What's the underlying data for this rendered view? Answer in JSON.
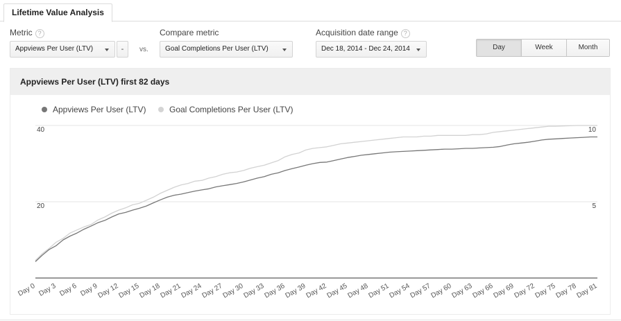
{
  "tabs": [
    {
      "label": "Lifetime Value Analysis"
    }
  ],
  "controls": {
    "metric_label": "Metric",
    "metric_value": "Appviews Per User (LTV)",
    "minus_label": "-",
    "vs_label": "vs.",
    "compare_label": "Compare metric",
    "compare_value": "Goal Completions Per User (LTV)",
    "date_label": "Acquisition date range",
    "date_value": "Dec 18, 2014 - Dec 24, 2014",
    "help_glyph": "?"
  },
  "granularity": {
    "options": [
      "Day",
      "Week",
      "Month"
    ],
    "selected": "Day"
  },
  "chart_title": "Appviews Per User (LTV) first 82 days",
  "colors": {
    "series_primary": "#777777",
    "series_compare": "#d2d2d2",
    "gridline": "#e6e6e6"
  },
  "chart_data": {
    "type": "line",
    "title": "Appviews Per User (LTV) first 82 days",
    "x_tick_labels": [
      "Day 0",
      "Day 3",
      "Day 6",
      "Day 9",
      "Day 12",
      "Day 15",
      "Day 18",
      "Day 21",
      "Day 24",
      "Day 27",
      "Day 30",
      "Day 33",
      "Day 36",
      "Day 39",
      "Day 42",
      "Day 45",
      "Day 48",
      "Day 51",
      "Day 54",
      "Day 57",
      "Day 60",
      "Day 63",
      "Day 66",
      "Day 69",
      "Day 72",
      "Day 75",
      "Day 78",
      "Day 81"
    ],
    "x_range": [
      0,
      81
    ],
    "y_left": {
      "ticks": [
        "40",
        "20"
      ],
      "range": [
        0,
        40
      ]
    },
    "y_right": {
      "ticks": [
        "10",
        "5"
      ],
      "range": [
        0,
        10
      ]
    },
    "grid": true,
    "legend_position": "top-left",
    "series": [
      {
        "name": "Appviews Per User (LTV)",
        "axis": "left",
        "x": [
          0,
          1,
          2,
          3,
          4,
          5,
          6,
          7,
          8,
          9,
          10,
          11,
          12,
          13,
          14,
          15,
          16,
          17,
          18,
          19,
          20,
          21,
          22,
          23,
          24,
          25,
          26,
          27,
          28,
          29,
          30,
          31,
          32,
          33,
          34,
          35,
          36,
          37,
          38,
          39,
          40,
          41,
          42,
          43,
          44,
          45,
          46,
          47,
          48,
          49,
          50,
          51,
          52,
          53,
          54,
          55,
          56,
          57,
          58,
          59,
          60,
          61,
          62,
          63,
          64,
          65,
          66,
          67,
          68,
          69,
          70,
          71,
          72,
          73,
          74,
          75,
          76,
          77,
          78,
          79,
          80,
          81
        ],
        "values": [
          4.3,
          6.0,
          7.5,
          8.5,
          10.0,
          11.0,
          11.8,
          12.8,
          13.6,
          14.5,
          15.1,
          16.0,
          16.8,
          17.2,
          17.8,
          18.3,
          18.9,
          19.7,
          20.5,
          21.2,
          21.7,
          22.0,
          22.4,
          22.8,
          23.1,
          23.4,
          23.9,
          24.2,
          24.5,
          24.8,
          25.2,
          25.7,
          26.2,
          26.6,
          27.2,
          27.6,
          28.2,
          28.7,
          29.1,
          29.6,
          30.0,
          30.3,
          30.4,
          30.8,
          31.2,
          31.6,
          31.9,
          32.2,
          32.4,
          32.6,
          32.8,
          33.0,
          33.1,
          33.2,
          33.3,
          33.4,
          33.5,
          33.6,
          33.7,
          33.8,
          33.8,
          33.9,
          34.0,
          34.0,
          34.1,
          34.2,
          34.3,
          34.5,
          34.9,
          35.2,
          35.4,
          35.6,
          35.9,
          36.2,
          36.4,
          36.5,
          36.6,
          36.7,
          36.8,
          36.9,
          37.0,
          37.0
        ]
      },
      {
        "name": "Goal Completions Per User (LTV)",
        "axis": "right",
        "x": [
          0,
          1,
          2,
          3,
          4,
          5,
          6,
          7,
          8,
          9,
          10,
          11,
          12,
          13,
          14,
          15,
          16,
          17,
          18,
          19,
          20,
          21,
          22,
          23,
          24,
          25,
          26,
          27,
          28,
          29,
          30,
          31,
          32,
          33,
          34,
          35,
          36,
          37,
          38,
          39,
          40,
          41,
          42,
          43,
          44,
          45,
          46,
          47,
          48,
          49,
          50,
          51,
          52,
          53,
          54,
          55,
          56,
          57,
          58,
          59,
          60,
          61,
          62,
          63,
          64,
          65,
          66,
          67,
          68,
          69,
          70,
          71,
          72,
          73,
          74,
          75,
          76,
          77,
          78,
          79,
          80,
          81
        ],
        "values": [
          1.15,
          1.6,
          1.95,
          2.35,
          2.6,
          2.95,
          3.15,
          3.35,
          3.5,
          3.8,
          4.0,
          4.25,
          4.45,
          4.6,
          4.8,
          4.9,
          5.1,
          5.3,
          5.55,
          5.75,
          5.95,
          6.1,
          6.2,
          6.35,
          6.4,
          6.55,
          6.65,
          6.8,
          6.9,
          6.95,
          7.05,
          7.2,
          7.3,
          7.4,
          7.55,
          7.7,
          7.95,
          8.1,
          8.2,
          8.4,
          8.5,
          8.55,
          8.6,
          8.7,
          8.8,
          8.85,
          8.9,
          8.95,
          9.0,
          9.05,
          9.1,
          9.15,
          9.2,
          9.25,
          9.25,
          9.25,
          9.3,
          9.3,
          9.35,
          9.35,
          9.35,
          9.35,
          9.35,
          9.4,
          9.4,
          9.45,
          9.55,
          9.6,
          9.65,
          9.7,
          9.75,
          9.8,
          9.85,
          9.9,
          9.95,
          9.95,
          9.97,
          9.98,
          10.0,
          10.0,
          10.0,
          10.0
        ]
      }
    ]
  }
}
